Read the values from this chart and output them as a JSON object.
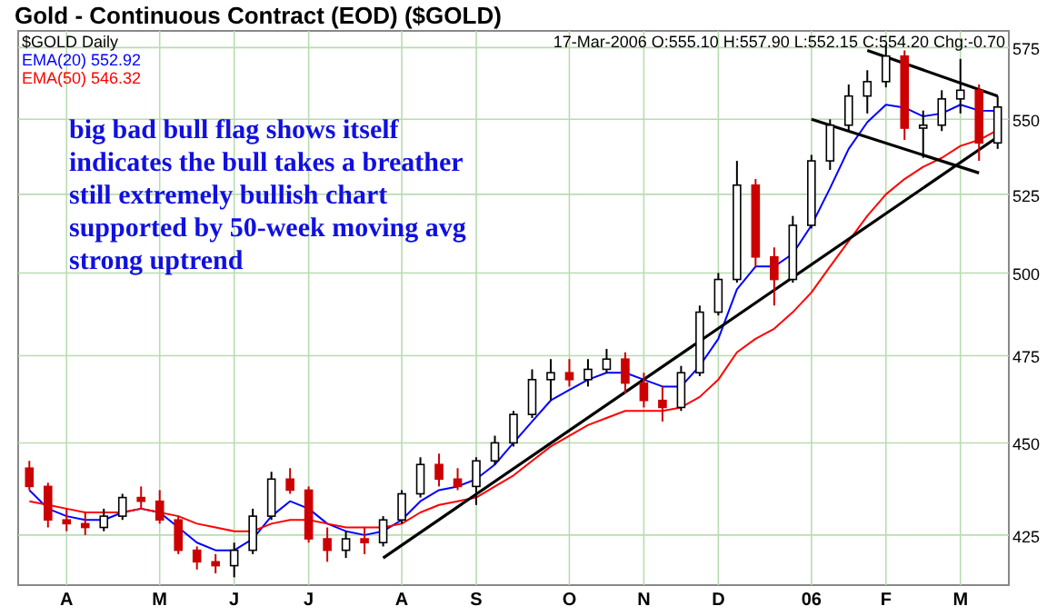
{
  "chart_data": {
    "type": "candlestick",
    "title": "Gold - Continuous Contract (EOD) ($GOLD)",
    "subtitle": "$GOLD Daily",
    "annotations": [
      "17-Mar-2006 O:555.10 H:557.90 L:552.15 C:554.20 Chg:-0.70",
      "big bad bull flag shows itself",
      "indicates the bull takes a breather",
      "still extremely bullish chart",
      "supported by 50-week moving avg",
      "strong uptrend"
    ],
    "categories": [
      null,
      null,
      "A",
      null,
      null,
      null,
      null,
      "M",
      null,
      null,
      null,
      "J",
      null,
      null,
      null,
      "J",
      null,
      null,
      null,
      null,
      "A",
      null,
      null,
      null,
      "S",
      null,
      null,
      null,
      null,
      "O",
      null,
      null,
      null,
      "N",
      null,
      null,
      null,
      "D",
      null,
      null,
      null,
      null,
      "06",
      null,
      null,
      null,
      "F",
      null,
      null,
      null,
      "M",
      null,
      null
    ],
    "ohlc": [
      [
        443,
        445,
        437,
        438
      ],
      [
        438,
        439,
        427,
        429
      ],
      [
        429,
        432,
        426,
        428
      ],
      [
        428,
        431,
        425,
        427
      ],
      [
        427,
        432,
        426,
        430
      ],
      [
        430,
        436,
        429,
        435
      ],
      [
        435,
        438,
        432,
        434
      ],
      [
        434,
        437,
        428,
        429
      ],
      [
        429,
        430,
        420,
        421
      ],
      [
        421,
        422,
        416,
        418
      ],
      [
        418,
        420,
        415,
        417
      ],
      [
        417,
        423,
        414,
        421
      ],
      [
        421,
        432,
        420,
        430
      ],
      [
        430,
        442,
        429,
        440
      ],
      [
        440,
        443,
        436,
        437
      ],
      [
        437,
        438,
        423,
        424
      ],
      [
        424,
        427,
        418,
        421
      ],
      [
        421,
        426,
        419,
        424
      ],
      [
        424,
        427,
        420,
        423
      ],
      [
        423,
        430,
        422,
        429
      ],
      [
        429,
        437,
        428,
        436
      ],
      [
        436,
        446,
        435,
        444
      ],
      [
        444,
        447,
        438,
        440
      ],
      [
        440,
        443,
        437,
        438
      ],
      [
        438,
        446,
        433,
        445
      ],
      [
        445,
        452,
        444,
        450
      ],
      [
        450,
        459,
        449,
        458
      ],
      [
        458,
        471,
        457,
        468
      ],
      [
        468,
        474,
        462,
        470
      ],
      [
        470,
        474,
        466,
        468
      ],
      [
        468,
        474,
        466,
        471
      ],
      [
        471,
        477,
        470,
        474
      ],
      [
        474,
        476,
        464,
        467
      ],
      [
        467,
        470,
        460,
        462
      ],
      [
        462,
        466,
        456,
        460
      ],
      [
        460,
        472,
        459,
        470
      ],
      [
        470,
        490,
        469,
        488
      ],
      [
        488,
        500,
        487,
        498
      ],
      [
        498,
        536,
        497,
        528
      ],
      [
        528,
        530,
        502,
        505
      ],
      [
        505,
        508,
        490,
        498
      ],
      [
        498,
        518,
        497,
        515
      ],
      [
        515,
        538,
        514,
        536
      ],
      [
        536,
        550,
        533,
        548
      ],
      [
        548,
        562,
        546,
        558
      ],
      [
        558,
        567,
        552,
        563
      ],
      [
        563,
        576,
        561,
        572
      ],
      [
        572,
        574,
        543,
        547
      ],
      [
        547,
        553,
        537,
        548
      ],
      [
        548,
        560,
        546,
        557
      ],
      [
        557,
        571,
        552,
        560
      ],
      [
        560,
        562,
        536,
        542
      ],
      [
        542,
        558,
        540,
        554.2
      ]
    ],
    "colors": [
      "#cc0000",
      "#cc0000",
      "#cc0000",
      "#cc0000",
      "#000000",
      "#000000",
      "#cc0000",
      "#cc0000",
      "#cc0000",
      "#cc0000",
      "#cc0000",
      "#000000",
      "#000000",
      "#000000",
      "#cc0000",
      "#cc0000",
      "#cc0000",
      "#000000",
      "#cc0000",
      "#000000",
      "#000000",
      "#000000",
      "#cc0000",
      "#cc0000",
      "#000000",
      "#000000",
      "#000000",
      "#000000",
      "#000000",
      "#cc0000",
      "#000000",
      "#000000",
      "#cc0000",
      "#cc0000",
      "#cc0000",
      "#000000",
      "#000000",
      "#000000",
      "#000000",
      "#cc0000",
      "#cc0000",
      "#000000",
      "#000000",
      "#000000",
      "#000000",
      "#000000",
      "#000000",
      "#cc0000",
      "#000000",
      "#000000",
      "#000000",
      "#cc0000",
      "#000000"
    ],
    "series": [
      {
        "name": "EMA(20) 552.92",
        "type": "line",
        "color": "#0000ff",
        "values": [
          437,
          432,
          430,
          429,
          429,
          431,
          432,
          431,
          427,
          423,
          421,
          421,
          424,
          430,
          434,
          432,
          428,
          426,
          425,
          426,
          429,
          434,
          437,
          438,
          440,
          444,
          450,
          456,
          462,
          465,
          468,
          470,
          470,
          468,
          466,
          466,
          472,
          480,
          495,
          502,
          502,
          506,
          515,
          527,
          540,
          549,
          555,
          554,
          551,
          552,
          555,
          553,
          552.92
        ]
      },
      {
        "name": "EMA(50) 546.32",
        "type": "line",
        "color": "#ff0000",
        "values": [
          434,
          433,
          432,
          431,
          431,
          431,
          432,
          431,
          430,
          428,
          427,
          426,
          426,
          428,
          429,
          429,
          428,
          427,
          427,
          427,
          428,
          431,
          433,
          434,
          435,
          438,
          441,
          445,
          449,
          452,
          455,
          457,
          459,
          459,
          459,
          460,
          463,
          468,
          476,
          480,
          483,
          488,
          494,
          502,
          510,
          518,
          525,
          530,
          534,
          537,
          541,
          543,
          546.32
        ]
      },
      {
        "type": "line",
        "color": "#000000",
        "values": [
          null,
          null,
          null,
          null,
          null,
          null,
          null,
          null,
          null,
          null,
          null,
          null,
          null,
          null,
          null,
          null,
          null,
          null,
          null,
          419,
          null,
          null,
          null,
          null,
          null,
          null,
          null,
          null,
          null,
          null,
          null,
          null,
          null,
          null,
          null,
          null,
          null,
          null,
          null,
          null,
          null,
          null,
          null,
          null,
          null,
          null,
          null,
          null,
          null,
          null,
          null,
          null,
          544
        ]
      },
      {
        "type": "line",
        "color": "#000000",
        "values": [
          null,
          null,
          null,
          null,
          null,
          null,
          null,
          null,
          null,
          null,
          null,
          null,
          null,
          null,
          null,
          null,
          null,
          null,
          null,
          null,
          null,
          null,
          null,
          null,
          null,
          null,
          null,
          null,
          null,
          null,
          null,
          null,
          null,
          null,
          null,
          null,
          null,
          null,
          null,
          null,
          null,
          null,
          null,
          null,
          null,
          574,
          null,
          null,
          null,
          null,
          null,
          null,
          558
        ]
      },
      {
        "type": "line",
        "color": "#000000",
        "values": [
          null,
          null,
          null,
          null,
          null,
          null,
          null,
          null,
          null,
          null,
          null,
          null,
          null,
          null,
          null,
          null,
          null,
          null,
          null,
          null,
          null,
          null,
          null,
          null,
          null,
          null,
          null,
          null,
          null,
          null,
          null,
          null,
          null,
          null,
          null,
          null,
          null,
          null,
          null,
          null,
          null,
          null,
          550,
          null,
          null,
          null,
          null,
          null,
          null,
          null,
          null,
          532,
          null
        ]
      }
    ],
    "ylim": [
      412,
      581
    ],
    "yticks": [
      425,
      450,
      475,
      500,
      525,
      550,
      575
    ],
    "log": true,
    "grid": true,
    "legend": "top left"
  }
}
